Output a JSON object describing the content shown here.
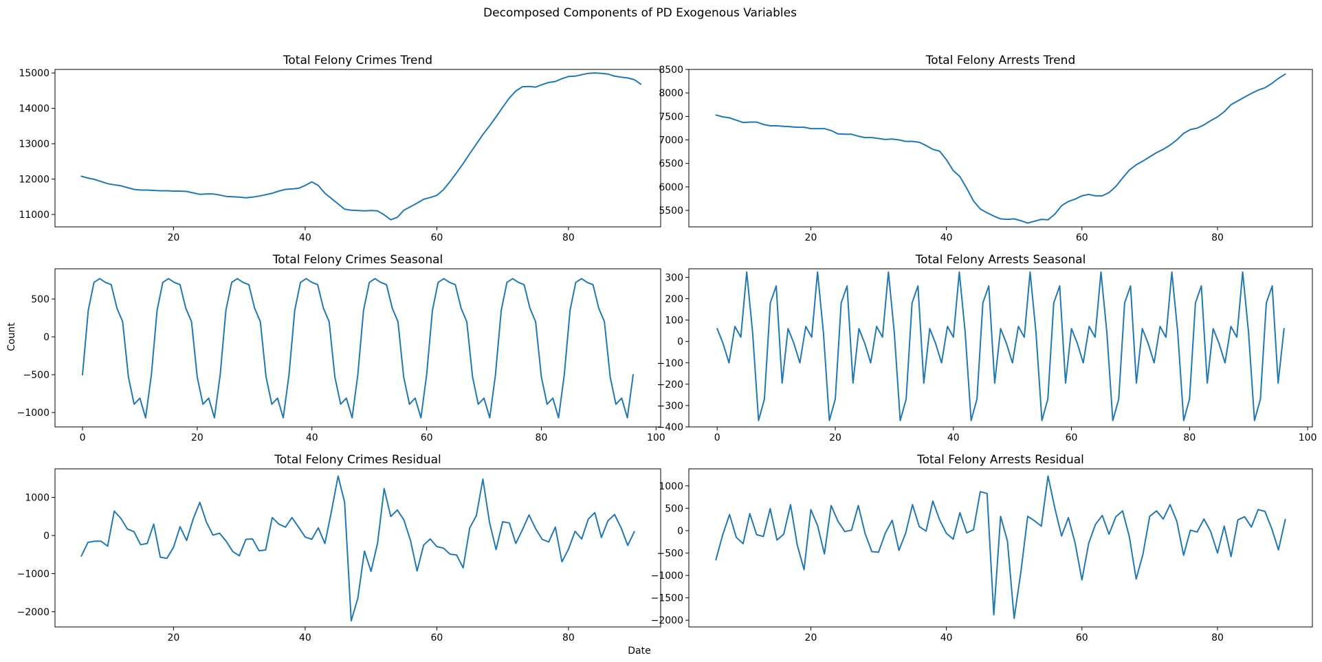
{
  "figure": {
    "suptitle": "Decomposed Components of PD Exogenous Variables",
    "ylabel": "Count",
    "xlabel": "Date",
    "line_color": "#1f77b4"
  },
  "chart_data": [
    {
      "type": "line",
      "title": "Total Felony Crimes Trend",
      "xlim": [
        2,
        94
      ],
      "ylim": [
        10650,
        15100
      ],
      "xticks": [
        20,
        40,
        60,
        80
      ],
      "yticks": [
        11000,
        12000,
        13000,
        14000,
        15000
      ],
      "x_start": 6,
      "y": [
        12080,
        12030,
        11990,
        11930,
        11870,
        11840,
        11810,
        11760,
        11710,
        11690,
        11690,
        11680,
        11670,
        11670,
        11660,
        11660,
        11650,
        11610,
        11570,
        11580,
        11580,
        11550,
        11510,
        11500,
        11490,
        11470,
        11490,
        11520,
        11560,
        11600,
        11660,
        11710,
        11720,
        11740,
        11820,
        11920,
        11820,
        11600,
        11450,
        11300,
        11150,
        11120,
        11110,
        11100,
        11110,
        11100,
        10990,
        10850,
        10920,
        11120,
        11220,
        11320,
        11430,
        11480,
        11540,
        11700,
        11930,
        12180,
        12440,
        12720,
        12990,
        13260,
        13500,
        13760,
        14030,
        14290,
        14490,
        14610,
        14620,
        14600,
        14670,
        14730,
        14760,
        14840,
        14900,
        14910,
        14950,
        14990,
        15000,
        14990,
        14970,
        14910,
        14880,
        14860,
        14810,
        14680
      ]
    },
    {
      "type": "line",
      "title": "Total Felony Arrests Trend",
      "xlim": [
        2,
        94
      ],
      "ylim": [
        5150,
        8500
      ],
      "xticks": [
        20,
        40,
        60,
        80
      ],
      "yticks": [
        5500,
        6000,
        6500,
        7000,
        7500,
        8000,
        8500
      ],
      "x_start": 6,
      "y": [
        7530,
        7490,
        7470,
        7420,
        7370,
        7380,
        7380,
        7330,
        7300,
        7300,
        7290,
        7280,
        7270,
        7270,
        7240,
        7240,
        7240,
        7200,
        7130,
        7120,
        7120,
        7080,
        7050,
        7050,
        7030,
        7010,
        7020,
        7000,
        6970,
        6970,
        6950,
        6880,
        6800,
        6760,
        6580,
        6350,
        6220,
        5970,
        5700,
        5530,
        5450,
        5380,
        5320,
        5310,
        5320,
        5280,
        5230,
        5270,
        5310,
        5300,
        5420,
        5600,
        5690,
        5740,
        5810,
        5840,
        5810,
        5810,
        5880,
        6010,
        6190,
        6360,
        6470,
        6550,
        6640,
        6730,
        6800,
        6890,
        7000,
        7140,
        7220,
        7250,
        7320,
        7410,
        7490,
        7600,
        7750,
        7830,
        7910,
        7990,
        8060,
        8110,
        8200,
        8310,
        8400
      ]
    },
    {
      "type": "line",
      "title": "Total Felony Crimes Seasonal",
      "xlim": [
        -4.8,
        100.8
      ],
      "ylim": [
        -1190,
        900
      ],
      "xticks": [
        0,
        20,
        40,
        60,
        80,
        100
      ],
      "yticks": [
        -1000,
        -500,
        0,
        500
      ],
      "ylabel": "Count",
      "x_start": 0,
      "period": 12,
      "length": 97,
      "pattern": [
        -500,
        350,
        720,
        770,
        720,
        690,
        380,
        200,
        -530,
        -890,
        -810,
        -1070
      ]
    },
    {
      "type": "line",
      "title": "Total Felony Arrests Seasonal",
      "xlim": [
        -4.8,
        100.8
      ],
      "ylim": [
        -400,
        340
      ],
      "xticks": [
        0,
        20,
        40,
        60,
        80,
        100
      ],
      "yticks": [
        -400,
        -300,
        -200,
        -100,
        0,
        100,
        200,
        300
      ],
      "x_start": 0,
      "period": 12,
      "length": 97,
      "pattern": [
        60,
        -10,
        -100,
        70,
        20,
        325,
        40,
        -370,
        -270,
        180,
        260,
        -195
      ]
    },
    {
      "type": "line",
      "title": "Total Felony Crimes Residual",
      "xlim": [
        2,
        94
      ],
      "ylim": [
        -2400,
        1750
      ],
      "xticks": [
        20,
        40,
        60,
        80
      ],
      "yticks": [
        -2000,
        -1000,
        0,
        1000
      ],
      "xlabel": "Date",
      "x_start": 6,
      "y": [
        -540,
        -180,
        -150,
        -150,
        -280,
        640,
        450,
        170,
        100,
        -240,
        -210,
        300,
        -570,
        -600,
        -310,
        230,
        -130,
        440,
        870,
        350,
        10,
        60,
        -150,
        -420,
        -530,
        -100,
        -90,
        -400,
        -380,
        470,
        300,
        220,
        470,
        220,
        -40,
        -100,
        200,
        -210,
        640,
        1560,
        870,
        -2240,
        -1650,
        -410,
        -940,
        -200,
        1230,
        500,
        670,
        410,
        -130,
        -930,
        -250,
        -90,
        -290,
        -330,
        -490,
        -510,
        -850,
        200,
        520,
        1480,
        350,
        -370,
        360,
        330,
        -210,
        150,
        540,
        180,
        -100,
        -170,
        220,
        -690,
        -360,
        110,
        -90,
        430,
        600,
        -50,
        390,
        550,
        200,
        -260,
        100
      ]
    },
    {
      "type": "line",
      "title": "Total Felony Arrests Residual",
      "xlim": [
        2,
        94
      ],
      "ylim": [
        -2150,
        1380
      ],
      "xticks": [
        20,
        40,
        60,
        80
      ],
      "yticks": [
        -2000,
        -1500,
        -1000,
        -500,
        0,
        500,
        1000
      ],
      "x_start": 6,
      "y": [
        -650,
        -90,
        360,
        -150,
        -290,
        380,
        -90,
        -130,
        490,
        -210,
        -80,
        580,
        -320,
        -870,
        470,
        110,
        -520,
        560,
        210,
        -20,
        10,
        560,
        -60,
        -470,
        -480,
        -50,
        230,
        -440,
        -50,
        580,
        90,
        -10,
        660,
        240,
        -60,
        -190,
        400,
        -50,
        20,
        870,
        830,
        -1880,
        320,
        -230,
        -1960,
        -910,
        320,
        220,
        100,
        1220,
        500,
        -120,
        290,
        -280,
        -1100,
        -280,
        140,
        340,
        -80,
        310,
        440,
        -140,
        -1080,
        -530,
        320,
        440,
        260,
        580,
        210,
        -550,
        10,
        -30,
        260,
        -20,
        -500,
        100,
        -580,
        240,
        310,
        80,
        470,
        430,
        50,
        -430,
        250
      ]
    }
  ]
}
